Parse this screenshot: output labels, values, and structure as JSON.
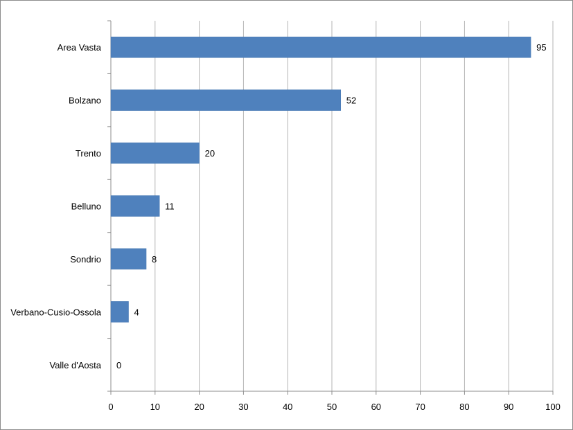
{
  "chart_data": {
    "type": "bar",
    "orientation": "horizontal",
    "title": "",
    "xlabel": "",
    "ylabel": "",
    "categories": [
      "Area Vasta",
      "Bolzano",
      "Trento",
      "Belluno",
      "Sondrio",
      "Verbano-Cusio-Ossola",
      "Valle d'Aosta"
    ],
    "values": [
      95,
      52,
      20,
      11,
      8,
      4,
      0
    ],
    "xlim": [
      0,
      100
    ],
    "x_ticks": [
      0,
      10,
      20,
      30,
      40,
      50,
      60,
      70,
      80,
      90,
      100
    ],
    "grid": "vertical",
    "legend": "none",
    "data_labels": true,
    "bar_color": "#4f81bd",
    "grid_color": "#b3b3b3",
    "axis_color": "#8c8c8c"
  }
}
